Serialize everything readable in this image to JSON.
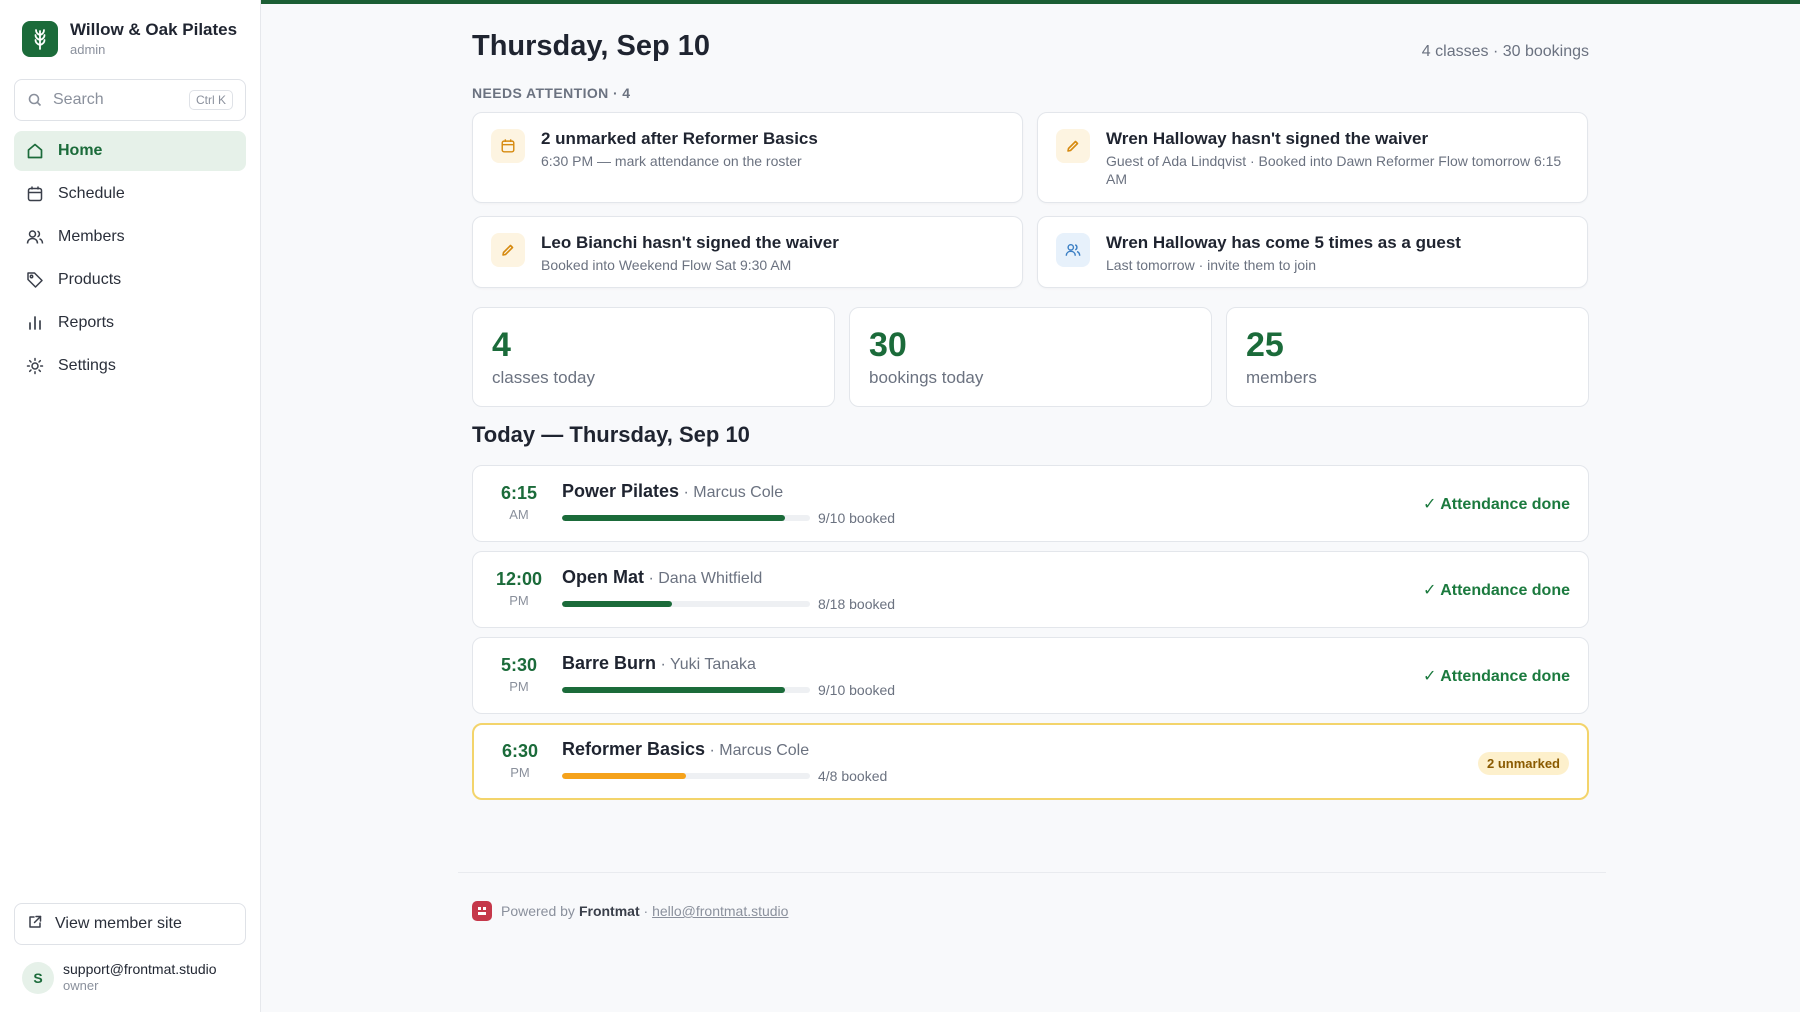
{
  "brand": {
    "name": "Willow & Oak Pilates",
    "role": "admin"
  },
  "search": {
    "placeholder": "Search",
    "shortcut": "Ctrl K"
  },
  "nav": [
    {
      "label": "Home",
      "icon": "home-icon",
      "active": true
    },
    {
      "label": "Schedule",
      "icon": "calendar-icon"
    },
    {
      "label": "Members",
      "icon": "users-icon"
    },
    {
      "label": "Products",
      "icon": "tag-icon"
    },
    {
      "label": "Reports",
      "icon": "bar-chart-icon"
    },
    {
      "label": "Settings",
      "icon": "sun-icon"
    }
  ],
  "member_site": {
    "label": "View member site"
  },
  "user": {
    "initial": "S",
    "email": "support@frontmat.studio",
    "role": "owner"
  },
  "page": {
    "title": "Thursday, Sep 10",
    "meta": "4 classes · 30 bookings"
  },
  "attention": {
    "label": "NEEDS ATTENTION · 4",
    "items": [
      {
        "title": "2 unmarked after Reformer Basics",
        "sub": "6:30 PM — mark attendance on the roster",
        "icon": "calendar-icon",
        "tone": "amber"
      },
      {
        "title": "Wren Halloway hasn't signed the waiver",
        "sub": "Guest of Ada Lindqvist · Booked into Dawn Reformer Flow tomorrow 6:15 AM",
        "icon": "pencil-icon",
        "tone": "amber"
      },
      {
        "title": "Leo Bianchi hasn't signed the waiver",
        "sub": "Booked into Weekend Flow Sat 9:30 AM",
        "icon": "pencil-icon",
        "tone": "amber"
      },
      {
        "title": "Wren Halloway has come 5 times as a guest",
        "sub": "Last tomorrow · invite them to join",
        "icon": "users-icon",
        "tone": "blue"
      }
    ]
  },
  "stats": [
    {
      "value": "4",
      "label": "classes today"
    },
    {
      "value": "30",
      "label": "bookings today"
    },
    {
      "value": "25",
      "label": "members"
    }
  ],
  "today": {
    "title": "Today — Thursday, Sep 10",
    "classes": [
      {
        "time": "6:15",
        "ampm": "AM",
        "name": "Power Pilates",
        "instructor": " · Marcus Cole",
        "booked": "9/10 booked",
        "fill": 0.9,
        "bar_color": "#1b6b3a",
        "status": "✓ Attendance done",
        "warn": false
      },
      {
        "time": "12:00",
        "ampm": "PM",
        "name": "Open Mat",
        "instructor": " · Dana Whitfield",
        "booked": "8/18 booked",
        "fill": 0.444,
        "bar_color": "#1b6b3a",
        "status": "✓ Attendance done",
        "warn": false
      },
      {
        "time": "5:30",
        "ampm": "PM",
        "name": "Barre Burn",
        "instructor": " · Yuki Tanaka",
        "booked": "9/10 booked",
        "fill": 0.9,
        "bar_color": "#1b6b3a",
        "status": "✓ Attendance done",
        "warn": false
      },
      {
        "time": "6:30",
        "ampm": "PM",
        "name": "Reformer Basics",
        "instructor": " · Marcus Cole",
        "booked": "4/8 booked",
        "fill": 0.5,
        "bar_color": "#f5a21b",
        "status": "2 unmarked",
        "warn": true
      }
    ]
  },
  "footer": {
    "powered": "Powered by",
    "brand": "Frontmat",
    "sep": " · ",
    "email": "hello@frontmat.studio"
  },
  "colors": {
    "accent": "#1b6b3a",
    "warning": "#f5a21b",
    "topbar": "#1b5e34"
  }
}
